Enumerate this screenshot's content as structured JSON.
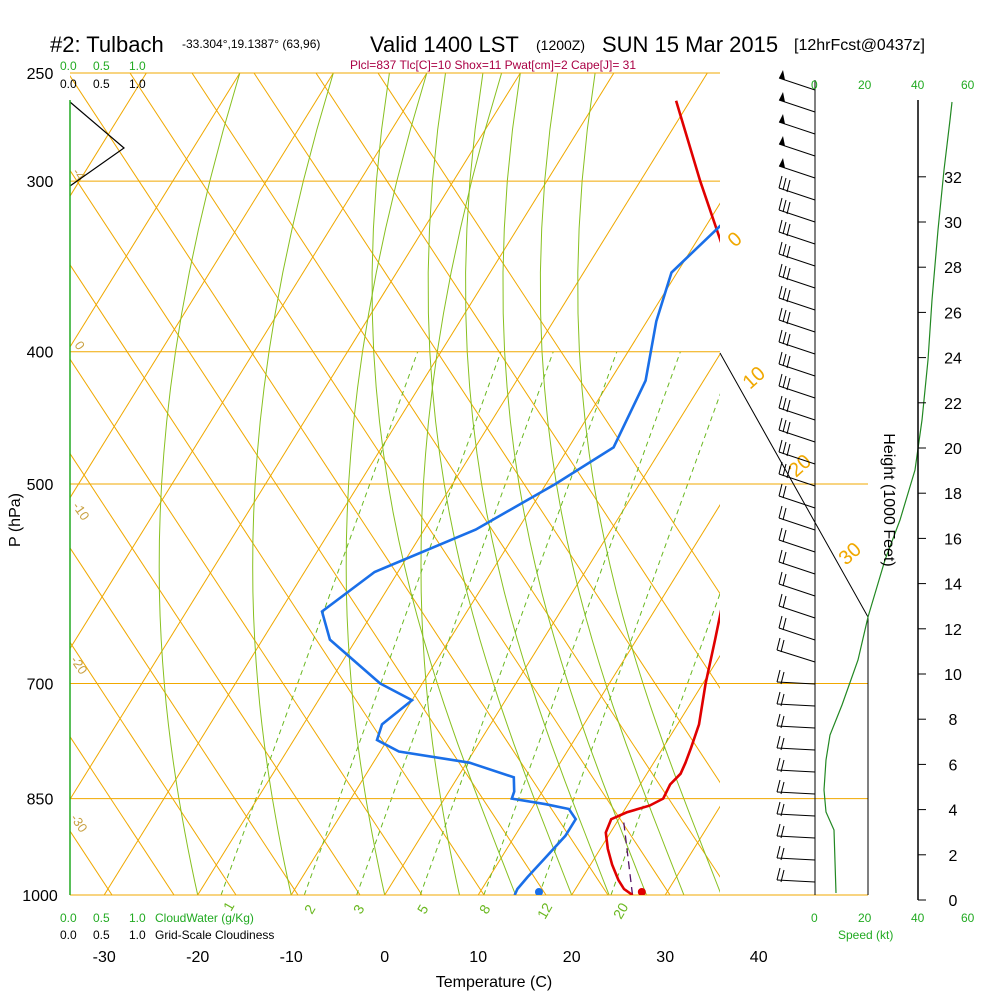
{
  "header": {
    "station": "#2: Tulbach",
    "coords": "-33.304°,19.1387° (63,96)",
    "valid": "Valid 1400 LST",
    "zulu": "(1200Z)",
    "date": "SUN 15 Mar 2015",
    "forecast": "[12hrFcst@0437z]",
    "indices": "Plcl=837 Tlc[C]=10 Shox=11 Pwat[cm]=2 Cape[J]= 31"
  },
  "colors": {
    "temperature": "#e00000",
    "dewpoint": "#1a6fe8",
    "isotherm": "#f0a800",
    "adiabat": "#88c020",
    "mixing": "#6ab820",
    "green_label": "#22aa22",
    "magenta": "#aa0044"
  },
  "chart_data": {
    "type": "skew-t",
    "xlabel": "Temperature (C)",
    "ylabel": "P (hPa)",
    "y2label": "Height (1000 Feet)",
    "xlim": [
      -33,
      36
    ],
    "ylim": [
      1000,
      250
    ],
    "x_ticks": [
      -30,
      -20,
      -10,
      0,
      10,
      20,
      30,
      40
    ],
    "p_ticks": [
      250,
      300,
      400,
      500,
      700,
      850,
      1000
    ],
    "height_ticks": [
      0,
      2,
      4,
      6,
      8,
      10,
      12,
      14,
      16,
      18,
      20,
      22,
      24,
      26,
      28,
      30,
      32
    ],
    "temperature_profile": [
      {
        "p": 1000,
        "t": 26.5
      },
      {
        "p": 990,
        "t": 25.2
      },
      {
        "p": 975,
        "t": 24.0
      },
      {
        "p": 950,
        "t": 22.3
      },
      {
        "p": 925,
        "t": 20.8
      },
      {
        "p": 900,
        "t": 19.5
      },
      {
        "p": 880,
        "t": 19.2
      },
      {
        "p": 870,
        "t": 20.4
      },
      {
        "p": 860,
        "t": 22.4
      },
      {
        "p": 850,
        "t": 23.4
      },
      {
        "p": 830,
        "t": 23.2
      },
      {
        "p": 815,
        "t": 23.6
      },
      {
        "p": 800,
        "t": 23.4
      },
      {
        "p": 780,
        "t": 23.0
      },
      {
        "p": 750,
        "t": 22.3
      },
      {
        "p": 700,
        "t": 20.3
      },
      {
        "p": 650,
        "t": 18.4
      },
      {
        "p": 600,
        "t": 16.3
      },
      {
        "p": 550,
        "t": 13.8
      },
      {
        "p": 500,
        "t": 10.8
      },
      {
        "p": 450,
        "t": 7.3
      },
      {
        "p": 400,
        "t": 2.9
      },
      {
        "p": 350,
        "t": -4.2
      },
      {
        "p": 300,
        "t": -13.6
      },
      {
        "p": 262,
        "t": -21.5
      }
    ],
    "dewpoint_profile": [
      {
        "p": 1000,
        "t": 13.9
      },
      {
        "p": 990,
        "t": 13.8
      },
      {
        "p": 970,
        "t": 14.1
      },
      {
        "p": 940,
        "t": 14.7
      },
      {
        "p": 905,
        "t": 15.4
      },
      {
        "p": 880,
        "t": 15.4
      },
      {
        "p": 865,
        "t": 14.0
      },
      {
        "p": 858,
        "t": 11.2
      },
      {
        "p": 850,
        "t": 7.2
      },
      {
        "p": 840,
        "t": 7.0
      },
      {
        "p": 820,
        "t": 6.0
      },
      {
        "p": 800,
        "t": 0.3
      },
      {
        "p": 785,
        "t": -8.0
      },
      {
        "p": 770,
        "t": -11.1
      },
      {
        "p": 750,
        "t": -11.6
      },
      {
        "p": 720,
        "t": -10.0
      },
      {
        "p": 700,
        "t": -14.5
      },
      {
        "p": 650,
        "t": -22.8
      },
      {
        "p": 620,
        "t": -25.5
      },
      {
        "p": 580,
        "t": -22.5
      },
      {
        "p": 540,
        "t": -14.5
      },
      {
        "p": 500,
        "t": -9.0
      },
      {
        "p": 470,
        "t": -5.2
      },
      {
        "p": 420,
        "t": -6.2
      },
      {
        "p": 380,
        "t": -9.0
      },
      {
        "p": 350,
        "t": -10.6
      },
      {
        "p": 320,
        "t": -8.2
      },
      {
        "p": 300,
        "t": -6.2
      },
      {
        "p": 280,
        "t": -10.0
      },
      {
        "p": 262,
        "t": -13.5
      }
    ],
    "parcel_profile": [
      {
        "p": 1000,
        "t": 26.5
      },
      {
        "p": 880,
        "t": 20.5
      }
    ],
    "surface_temperature": 27.5,
    "surface_dewpoint": 16.5,
    "isotherm_labels": [
      "0",
      "10",
      "20",
      "30"
    ],
    "mixing_ratio_labels": [
      "1",
      "2",
      "3",
      "5",
      "8",
      "12",
      "20"
    ],
    "cloud_water_ticks": [
      "0.0",
      "0.5",
      "1.0"
    ],
    "cloudiness_ticks": [
      "0.0",
      "0.5",
      "1.0"
    ],
    "cloudwater_label": "CloudWater (g/Kg)",
    "cloudiness_label": "Grid-Scale Cloudiness",
    "speed_label": "Speed (kt)",
    "speed_ticks": [
      "0",
      "20",
      "40",
      "60"
    ]
  }
}
